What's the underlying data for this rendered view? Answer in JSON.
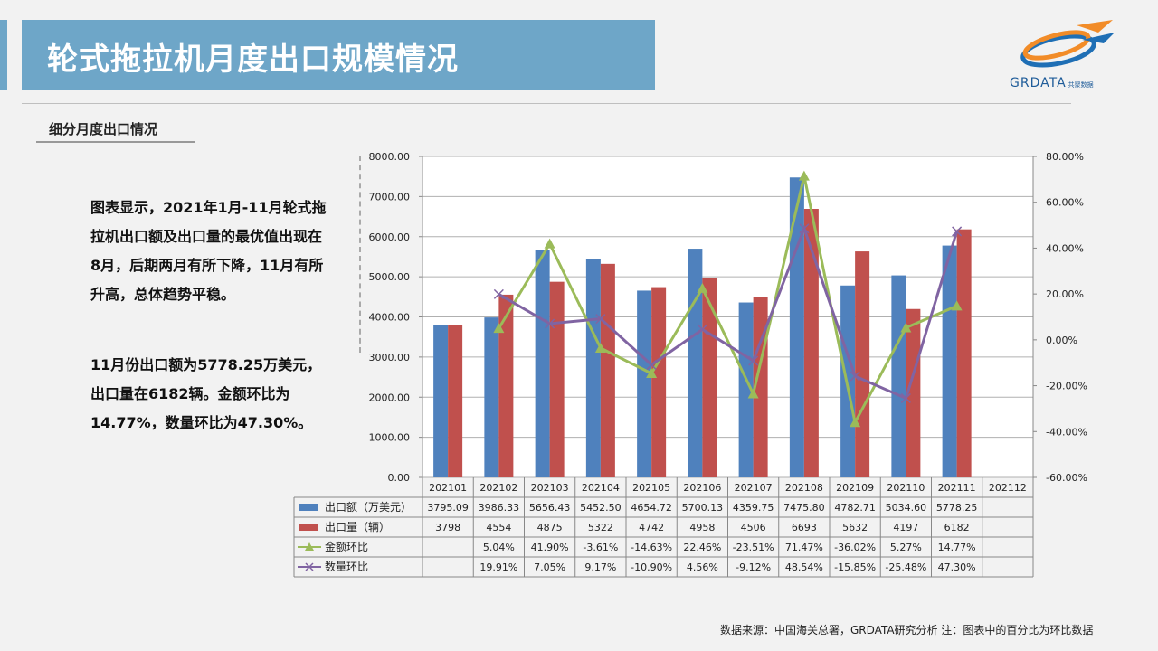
{
  "header": {
    "title": "轮式拖拉机月度出口规模情况",
    "logo_text": "GRDATA",
    "logo_sub": "共聚数据"
  },
  "section": {
    "subtitle": "细分月度出口情况"
  },
  "paragraphs": {
    "p1": "图表显示，2021年1月-11月轮式拖拉机出口额及出口量的最优值出现在8月，后期两月有所下降，11月有所升高，总体趋势平稳。",
    "p2": "11月份出口额为5778.25万美元，出口量在6182辆。金额环比为14.77%，数量环比为47.30%。"
  },
  "footer": {
    "source": "数据来源：中国海关总署，GRDATA研究分析  注：图表中的百分比为环比数据"
  },
  "colors": {
    "title_bg": "#6ea6c8",
    "bar1": "#4f81bd",
    "bar2": "#c0504d",
    "line1": "#9bbb59",
    "line2": "#8064a2"
  },
  "chart_data": {
    "type": "bar",
    "categories": [
      "202101",
      "202102",
      "202103",
      "202104",
      "202105",
      "202106",
      "202107",
      "202108",
      "202109",
      "202110",
      "202111",
      "202112"
    ],
    "y_left": {
      "min": 0,
      "max": 8000,
      "step": 1000,
      "ticks": [
        "0.00",
        "1000.00",
        "2000.00",
        "3000.00",
        "4000.00",
        "5000.00",
        "6000.00",
        "7000.00",
        "8000.00"
      ]
    },
    "y_right": {
      "min": -60,
      "max": 80,
      "step": 20,
      "ticks": [
        "-60.00%",
        "-40.00%",
        "-20.00%",
        "0.00%",
        "20.00%",
        "40.00%",
        "60.00%",
        "80.00%"
      ]
    },
    "grid": true,
    "legend": "data-table",
    "series": [
      {
        "name": "出口额（万美元）",
        "kind": "bar",
        "axis": "left",
        "color": "#4f81bd",
        "values": [
          3795.09,
          3986.33,
          5656.43,
          5452.5,
          4654.72,
          5700.13,
          4359.75,
          7475.8,
          4782.71,
          5034.6,
          5778.25,
          null
        ],
        "labels": [
          "3795.09",
          "3986.33",
          "5656.43",
          "5452.50",
          "4654.72",
          "5700.13",
          "4359.75",
          "7475.80",
          "4782.71",
          "5034.60",
          "5778.25",
          ""
        ]
      },
      {
        "name": "出口量（辆）",
        "kind": "bar",
        "axis": "left",
        "color": "#c0504d",
        "values": [
          3798,
          4554,
          4875,
          5322,
          4742,
          4958,
          4506,
          6693,
          5632,
          4197,
          6182,
          null
        ],
        "labels": [
          "3798",
          "4554",
          "4875",
          "5322",
          "4742",
          "4958",
          "4506",
          "6693",
          "5632",
          "4197",
          "6182",
          ""
        ]
      },
      {
        "name": "金额环比",
        "kind": "line",
        "axis": "right",
        "color": "#9bbb59",
        "marker": "triangle",
        "values": [
          null,
          5.04,
          41.9,
          -3.61,
          -14.63,
          22.46,
          -23.51,
          71.47,
          -36.02,
          5.27,
          14.77,
          null
        ],
        "labels": [
          "",
          "5.04%",
          "41.90%",
          "-3.61%",
          "-14.63%",
          "22.46%",
          "-23.51%",
          "71.47%",
          "-36.02%",
          "5.27%",
          "14.77%",
          ""
        ]
      },
      {
        "name": "数量环比",
        "kind": "line",
        "axis": "right",
        "color": "#8064a2",
        "marker": "x",
        "values": [
          null,
          19.91,
          7.05,
          9.17,
          -10.9,
          4.56,
          -9.12,
          48.54,
          -15.85,
          -25.48,
          47.3,
          null
        ],
        "labels": [
          "",
          "19.91%",
          "7.05%",
          "9.17%",
          "-10.90%",
          "4.56%",
          "-9.12%",
          "48.54%",
          "-15.85%",
          "-25.48%",
          "47.30%",
          ""
        ]
      }
    ]
  }
}
